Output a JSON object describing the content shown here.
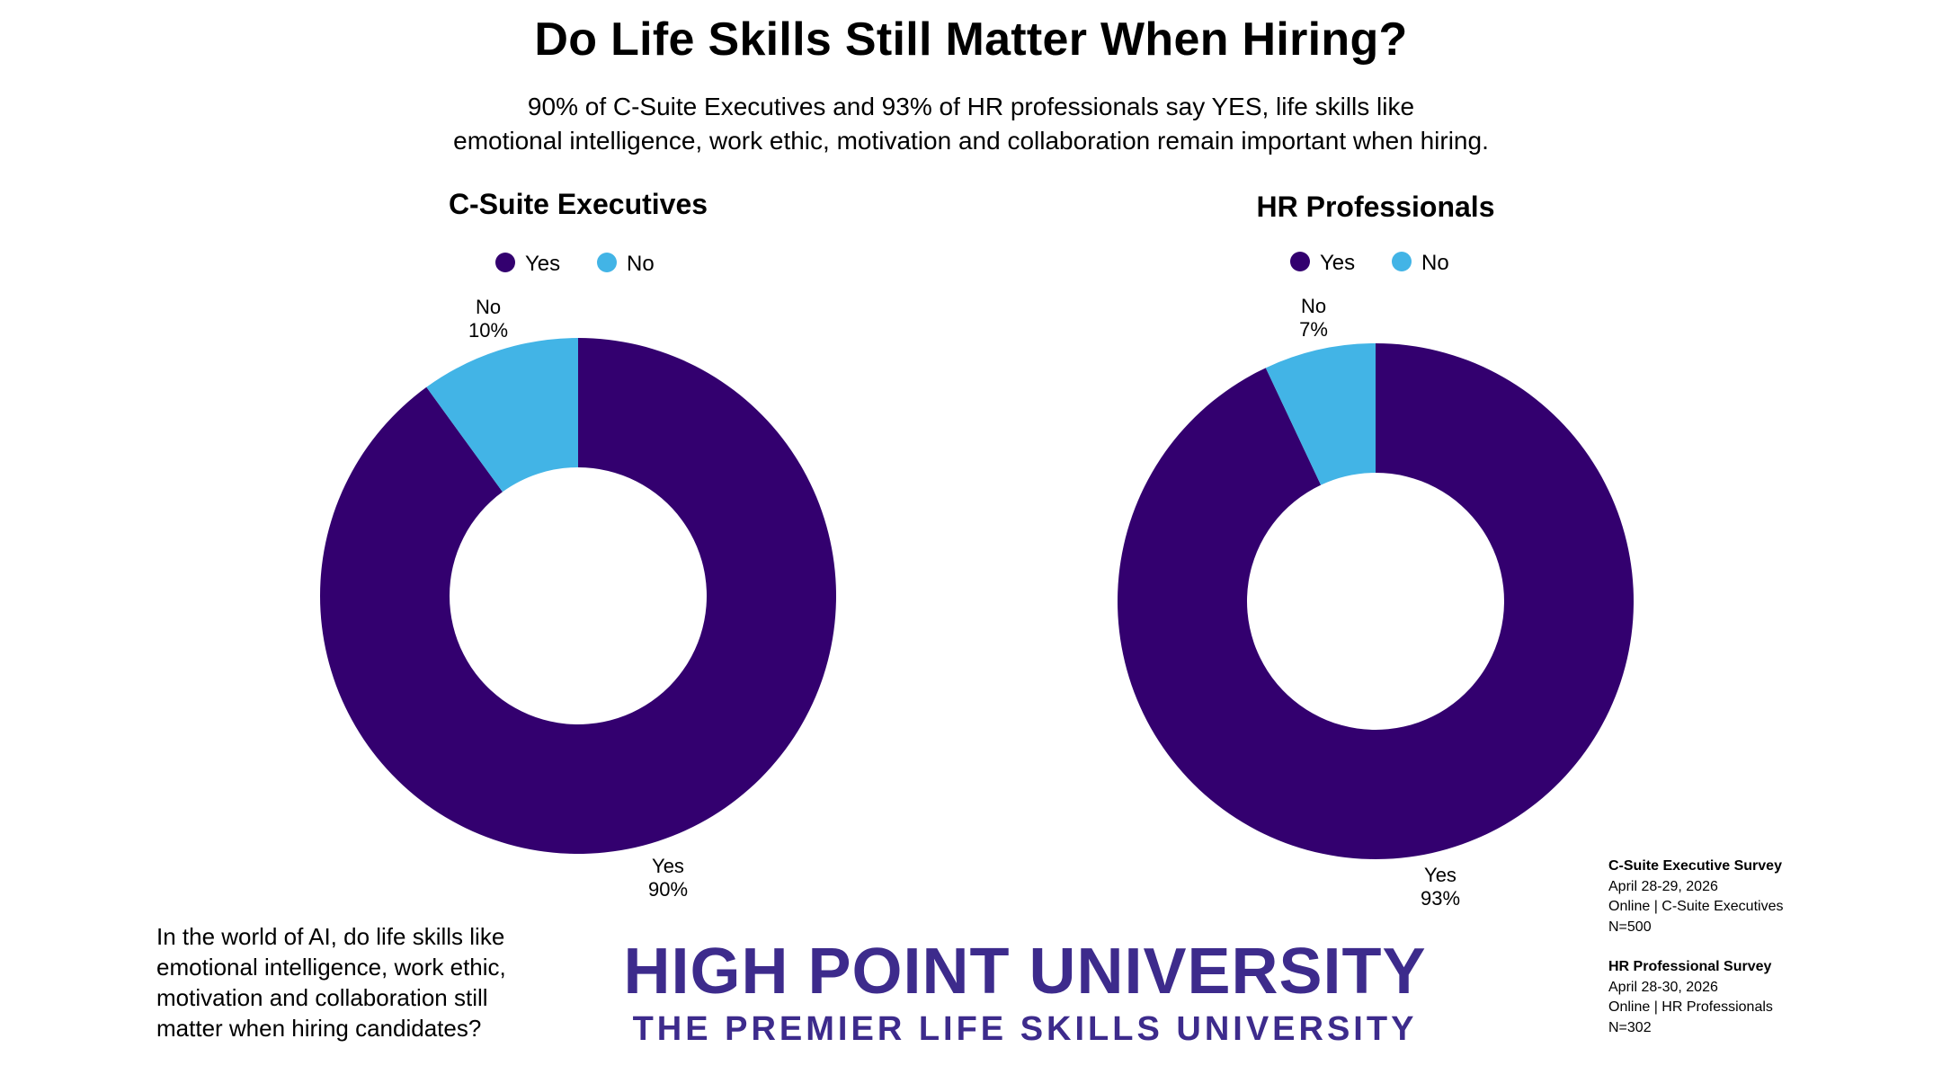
{
  "title": "Do Life Skills Still Matter When Hiring?",
  "subtitle": {
    "line1": "90% of C-Suite Executives and 93% of HR professionals say YES, life skills like",
    "line2": "emotional intelligence, work ethic, motivation and collaboration remain important when hiring."
  },
  "chart_data": [
    {
      "type": "pie",
      "title": "C-Suite Executives",
      "donut": true,
      "legend_placement": "top-center",
      "slices": [
        {
          "label": "Yes",
          "value": 90,
          "value_label": "90%",
          "color": "#33006f"
        },
        {
          "label": "No",
          "value": 10,
          "value_label": "10%",
          "color": "#42b4e6"
        }
      ]
    },
    {
      "type": "pie",
      "title": "HR Professionals",
      "donut": true,
      "legend_placement": "top-center",
      "slices": [
        {
          "label": "Yes",
          "value": 93,
          "value_label": "93%",
          "color": "#33006f"
        },
        {
          "label": "No",
          "value": 7,
          "value_label": "7%",
          "color": "#42b4e6"
        }
      ]
    }
  ],
  "question": {
    "line1": "In the world of AI, do life skills like",
    "line2": "emotional intelligence, work ethic,",
    "line3": "motivation and collaboration still",
    "line4": "matter when hiring candidates?"
  },
  "brand": {
    "name": "HIGH POINT UNIVERSITY",
    "tagline": "THE PREMIER LIFE SKILLS UNIVERSITY",
    "color": "#3d2b8c"
  },
  "survey_notes": [
    {
      "title": "C-Suite Executive Survey",
      "dates": "April 28-29, 2026",
      "method": "Online | C-Suite Executives",
      "n": "N=500"
    },
    {
      "title": "HR Professional Survey",
      "dates": "April 28-30, 2026",
      "method": "Online | HR Professionals",
      "n": "N=302"
    }
  ]
}
